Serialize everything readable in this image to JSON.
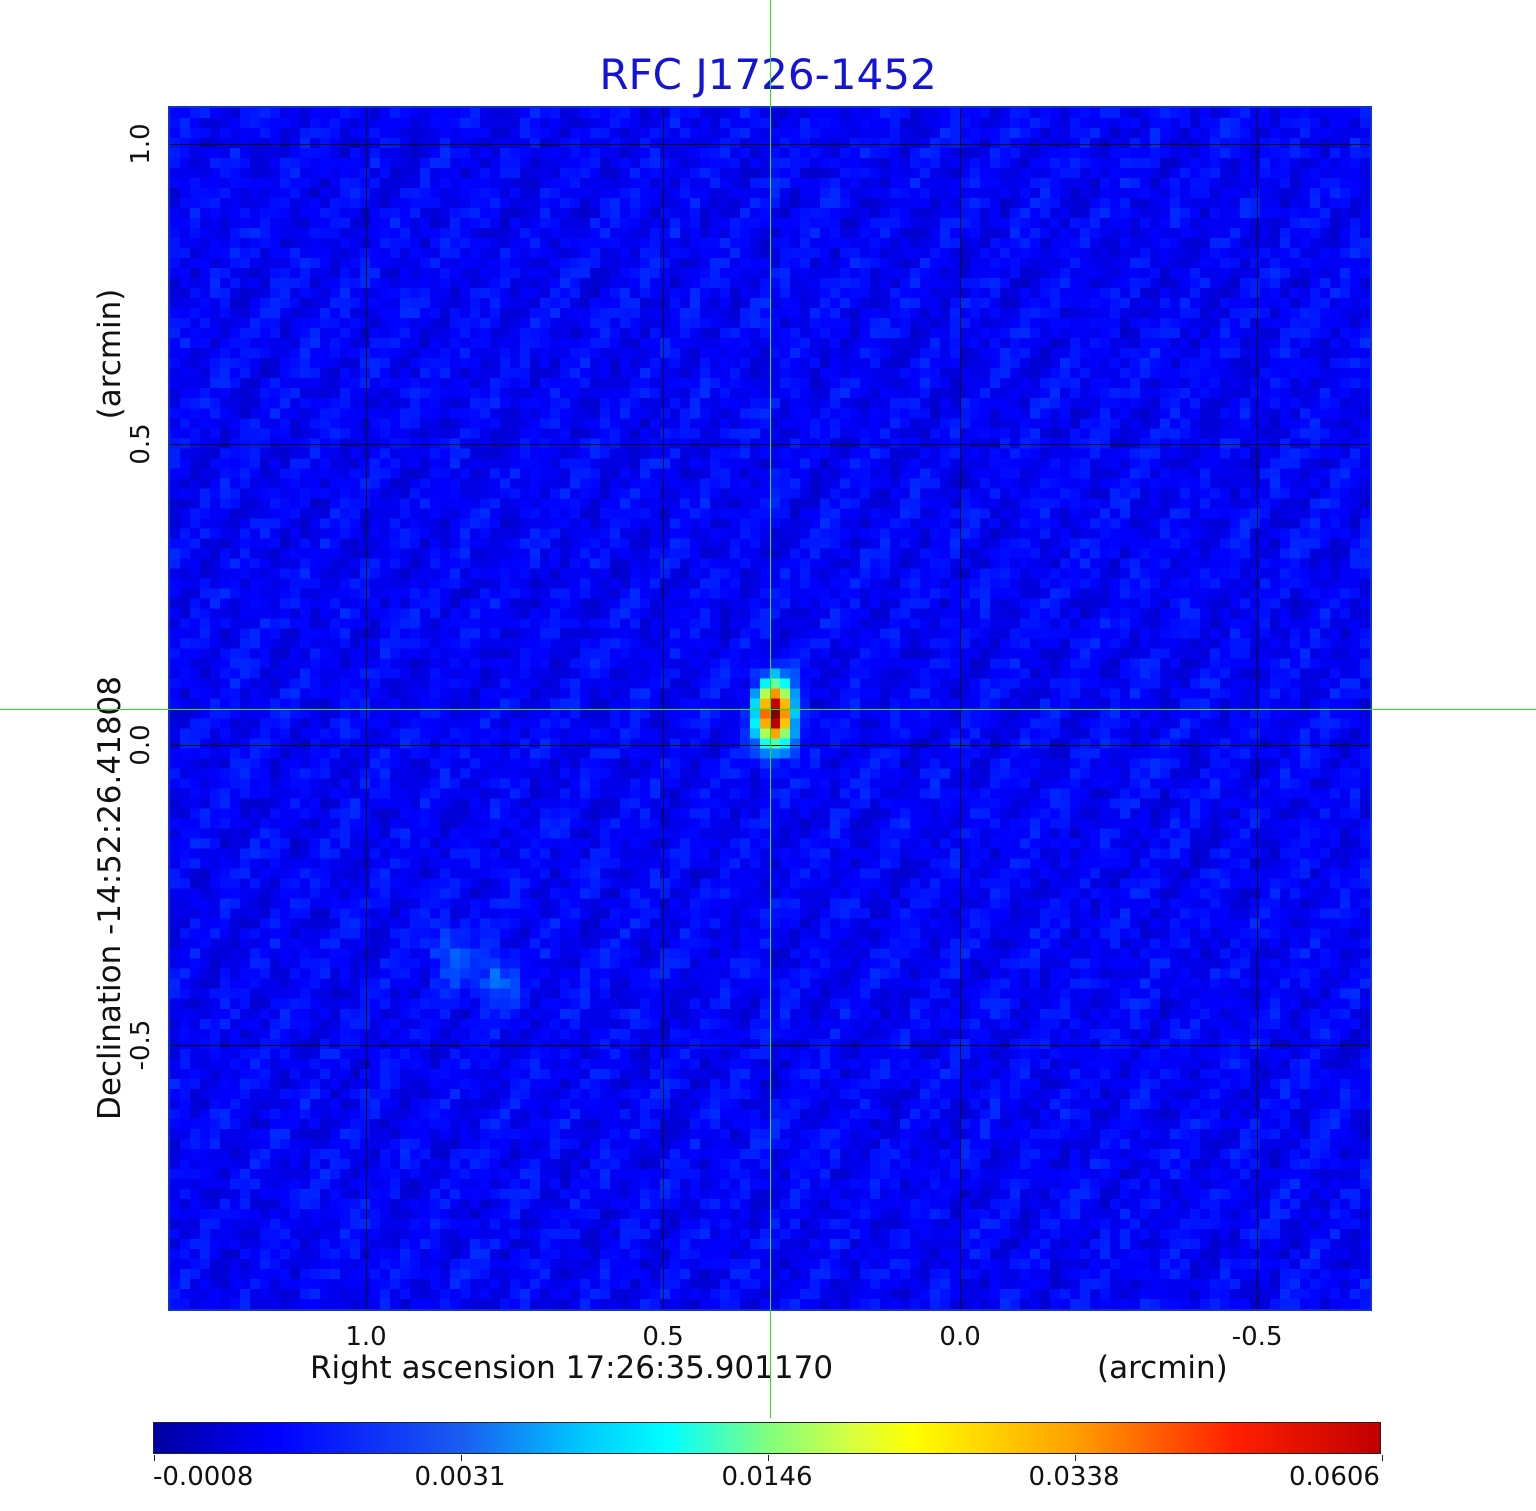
{
  "chart_data": {
    "type": "heatmap",
    "title": "RFC J1726-1452",
    "xlabel": "Right ascension  17:26:35.901170",
    "xunit": "(arcmin)",
    "ylabel": "Declination  -14:52:26.41808",
    "yunit": "(arcmin)",
    "x_ticks": [
      "1.0",
      "0.5",
      "0.0",
      "-0.5"
    ],
    "x_tick_values": [
      1.0,
      0.5,
      0.0,
      -0.5
    ],
    "xlim": [
      1.33,
      -0.69
    ],
    "y_ticks": [
      "1.0",
      "0.5",
      "0.0",
      "-0.5"
    ],
    "y_tick_values": [
      1.0,
      0.5,
      0.0,
      -0.5
    ],
    "ylim": [
      -0.94,
      1.06
    ],
    "grid": true,
    "crosshair": {
      "x": 0.32,
      "y": 0.06
    },
    "sources": [
      {
        "x": 0.32,
        "y": 0.06,
        "peak": 0.0606
      },
      {
        "x": 0.87,
        "y": -0.34,
        "peak": 0.006
      },
      {
        "x": 0.79,
        "y": -0.38,
        "peak": 0.007
      }
    ],
    "colorbar": {
      "colormap": "jet",
      "ticks": [
        "-0.0008",
        "0.0031",
        "0.0146",
        "0.0338",
        "0.0606"
      ],
      "range": [
        -0.0008,
        0.0606
      ]
    }
  }
}
